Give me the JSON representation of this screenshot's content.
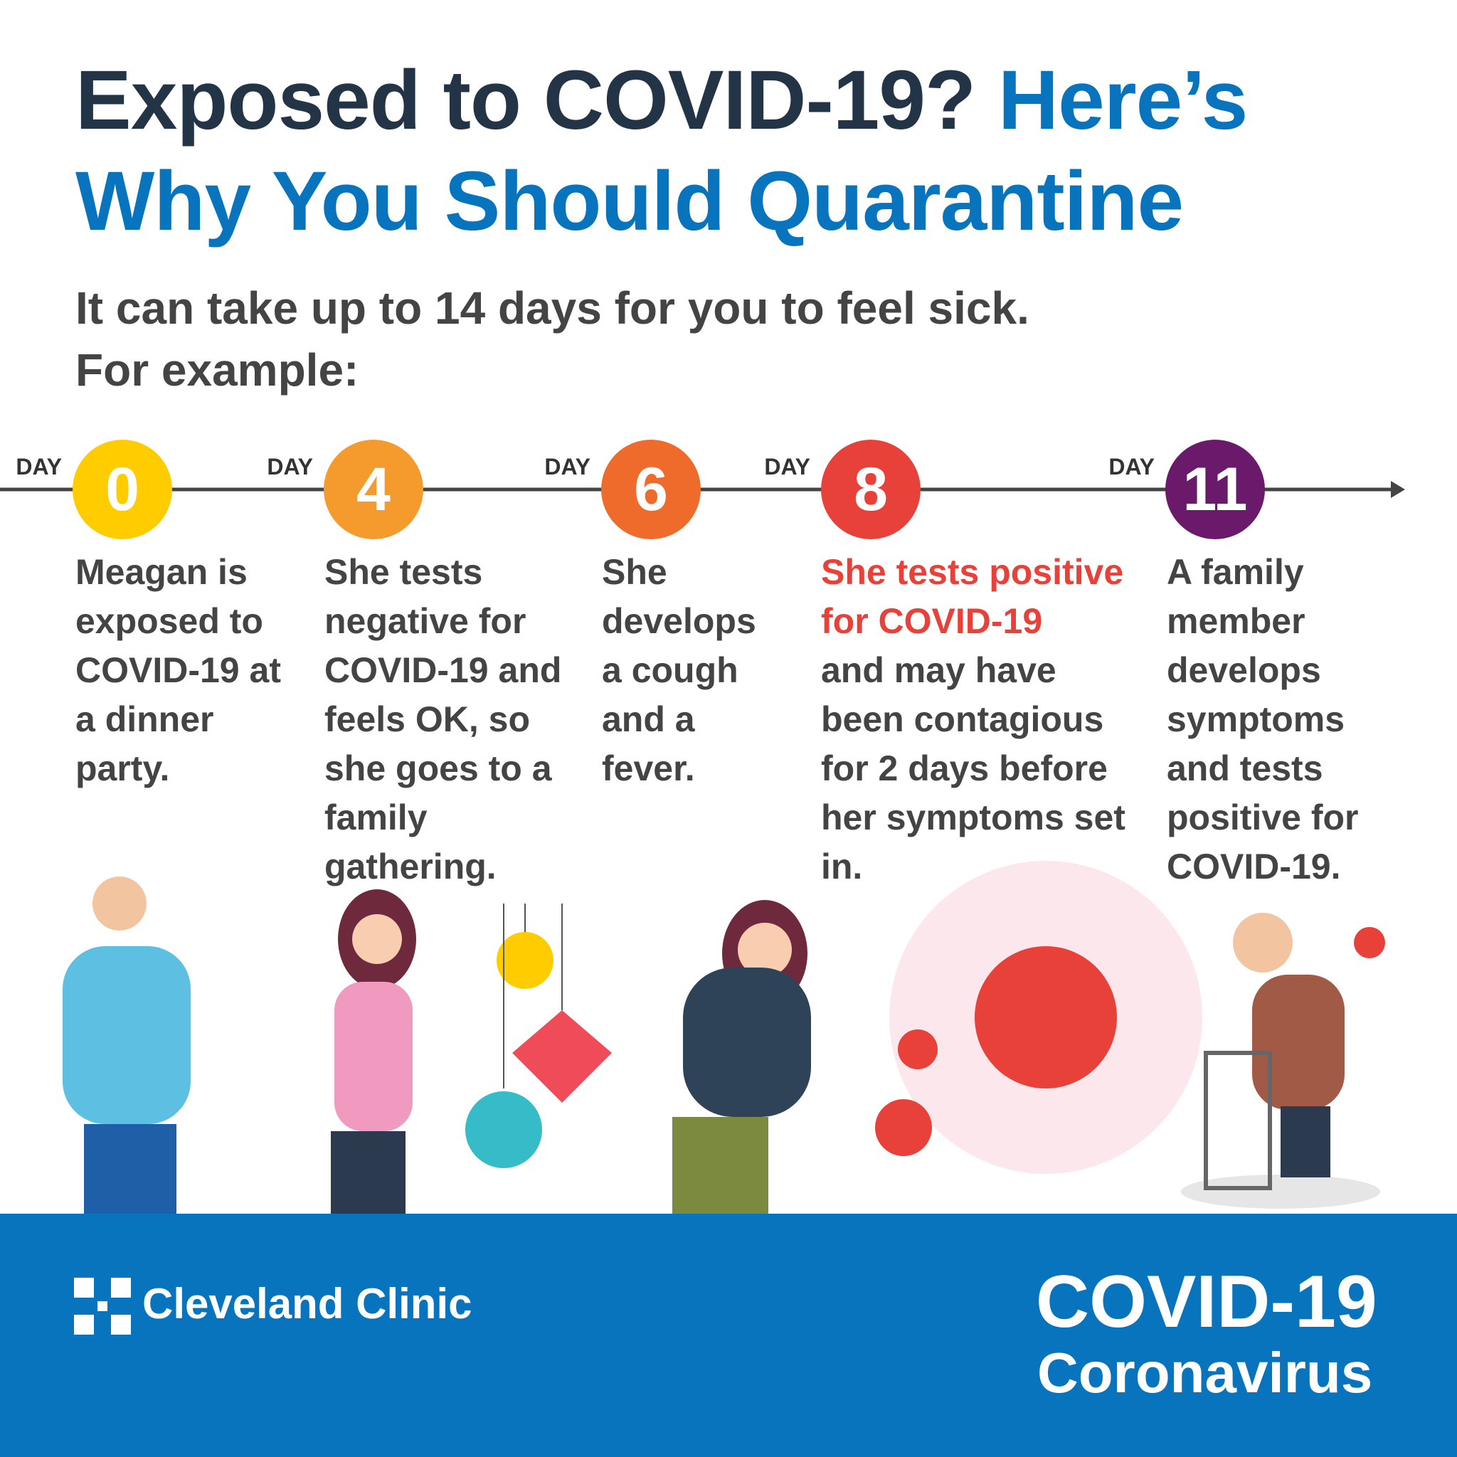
{
  "header": {
    "title_dark": "Exposed to COVID-19?",
    "title_blue": "Here’s Why You Should Quarantine",
    "subtitle_1": "It can take up to 14 days for you to feel sick.",
    "subtitle_2": "For example:"
  },
  "timeline": {
    "events": [
      {
        "day_label": "DAY",
        "day": "0",
        "text": "Meagan is exposed to COVID-19 at a dinner party."
      },
      {
        "day_label": "DAY",
        "day": "4",
        "text": "She tests negative for COVID-19 and feels OK, so she goes to a family gathering."
      },
      {
        "day_label": "DAY",
        "day": "6",
        "text": "She develops a cough and a fever."
      },
      {
        "day_label": "DAY",
        "day": "8",
        "highlight": "She tests positive for COVID-19",
        "text": "and may have been contagious for 2 days before her symptoms set in."
      },
      {
        "day_label": "DAY",
        "day": "11",
        "text": "A family member develops symptoms and tests positive for COVID-19."
      }
    ]
  },
  "footer": {
    "brand": "Cleveland Clinic",
    "badge_title": "COVID-19",
    "badge_subtitle": "Coronavirus"
  }
}
